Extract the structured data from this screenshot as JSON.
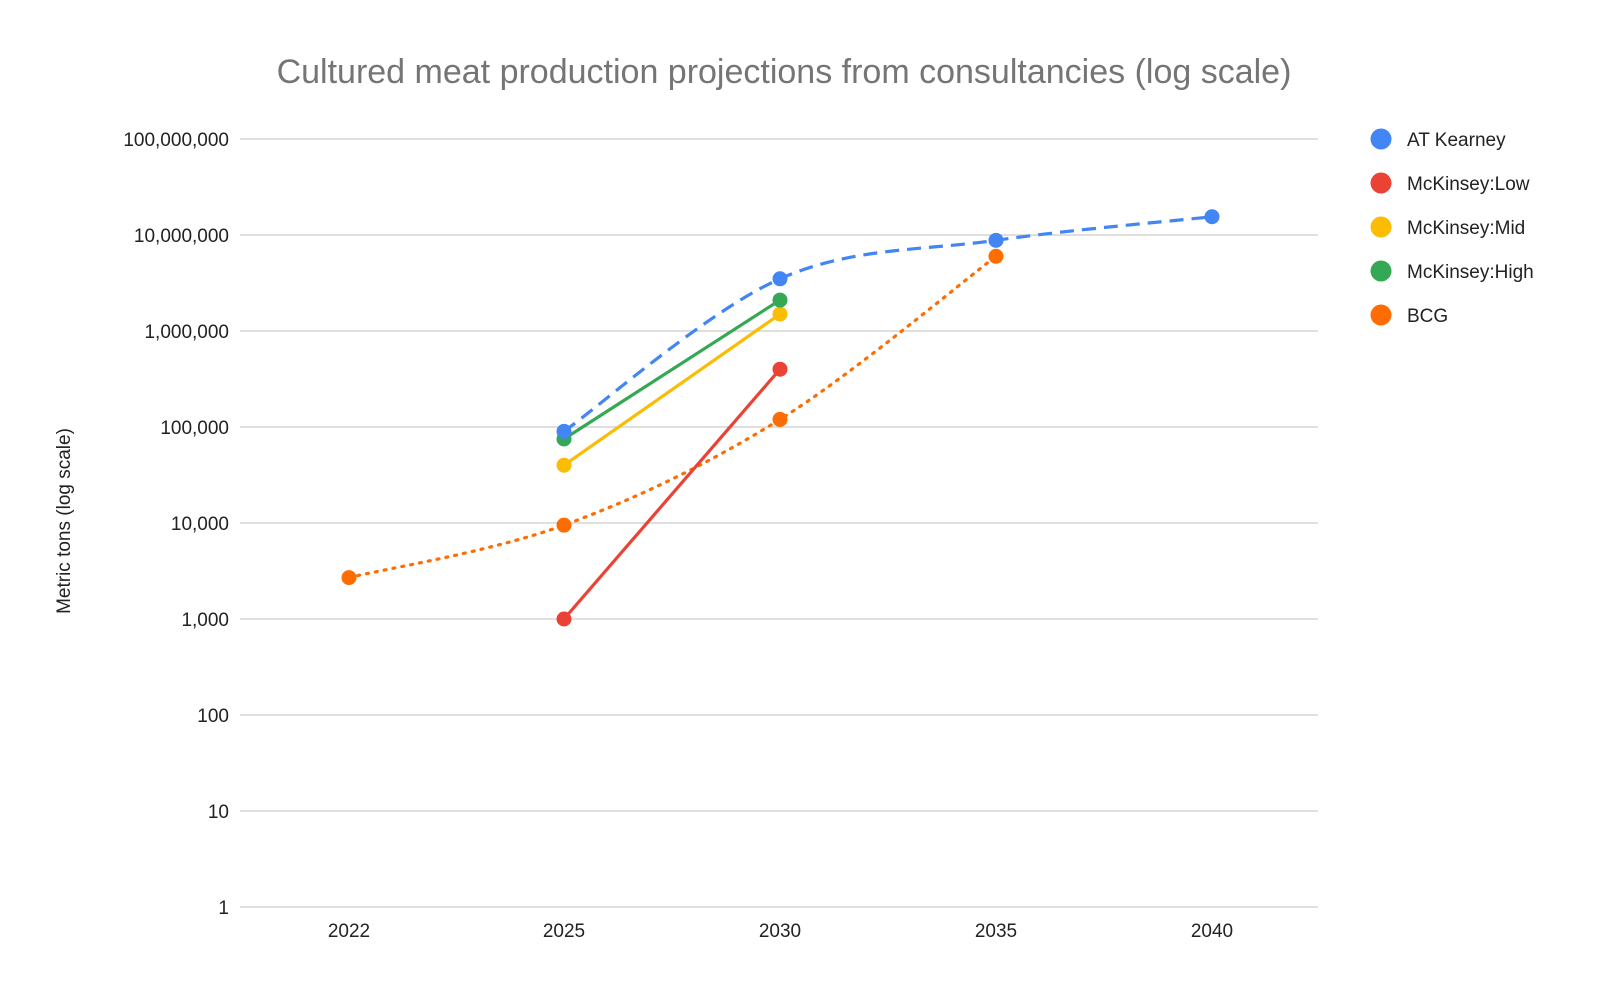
{
  "chart_data": {
    "type": "line",
    "title": "Cultured meat production projections from consultancies (log scale)",
    "xlabel": "",
    "ylabel": "Metric tons (log scale)",
    "y_scale": "log",
    "ylim": [
      1,
      100000000
    ],
    "x_ticks": [
      "2022",
      "2025",
      "2030",
      "2035",
      "2040"
    ],
    "y_ticks": [
      {
        "value": 1,
        "label": "1"
      },
      {
        "value": 10,
        "label": "10"
      },
      {
        "value": 100,
        "label": "100"
      },
      {
        "value": 1000,
        "label": "1,000"
      },
      {
        "value": 10000,
        "label": "10,000"
      },
      {
        "value": 100000,
        "label": "100,000"
      },
      {
        "value": 1000000,
        "label": "1,000,000"
      },
      {
        "value": 10000000,
        "label": "10,000,000"
      },
      {
        "value": 100000000,
        "label": "100,000,000"
      }
    ],
    "grid": true,
    "legend_position": "right",
    "series": [
      {
        "name": "AT Kearney",
        "color": "#4285F4",
        "line_style": "dashed",
        "smooth": true,
        "points": [
          {
            "x": "2025",
            "y": 90000
          },
          {
            "x": "2030",
            "y": 3500000
          },
          {
            "x": "2035",
            "y": 8800000
          },
          {
            "x": "2040",
            "y": 15500000
          }
        ]
      },
      {
        "name": "McKinsey:Low",
        "color": "#EA4335",
        "line_style": "solid",
        "smooth": false,
        "points": [
          {
            "x": "2025",
            "y": 1000
          },
          {
            "x": "2030",
            "y": 400000
          }
        ]
      },
      {
        "name": "McKinsey:Mid",
        "color": "#FBBC04",
        "line_style": "solid",
        "smooth": false,
        "points": [
          {
            "x": "2025",
            "y": 40000
          },
          {
            "x": "2030",
            "y": 1500000
          }
        ]
      },
      {
        "name": "McKinsey:High",
        "color": "#34A853",
        "line_style": "solid",
        "smooth": false,
        "points": [
          {
            "x": "2025",
            "y": 75000
          },
          {
            "x": "2030",
            "y": 2100000
          }
        ]
      },
      {
        "name": "BCG",
        "color": "#FF6D01",
        "line_style": "dotted",
        "smooth": true,
        "points": [
          {
            "x": "2022",
            "y": 2700
          },
          {
            "x": "2025",
            "y": 9500
          },
          {
            "x": "2030",
            "y": 120000
          },
          {
            "x": "2035",
            "y": 6000000
          }
        ]
      }
    ]
  }
}
